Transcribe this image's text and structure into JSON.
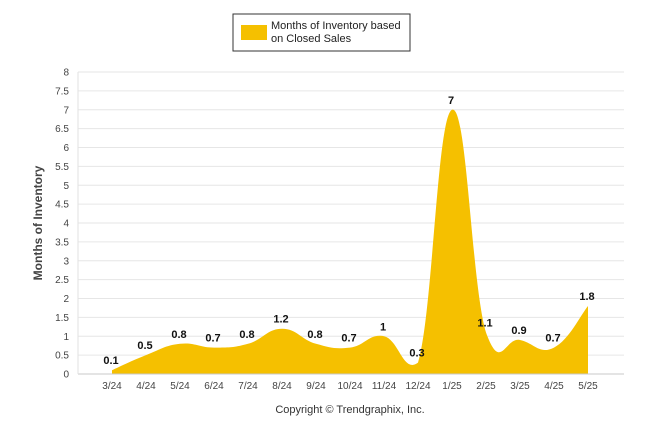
{
  "chart_data": {
    "type": "area",
    "categories": [
      "3/24",
      "4/24",
      "5/24",
      "6/24",
      "7/24",
      "8/24",
      "9/24",
      "10/24",
      "11/24",
      "12/24",
      "1/25",
      "2/25",
      "3/25",
      "4/25",
      "5/25"
    ],
    "series": [
      {
        "name": "Months of Inventory based on Closed Sales",
        "legend_lines": [
          "Months of Inventory based",
          "on Closed Sales"
        ],
        "values": [
          0.1,
          0.5,
          0.8,
          0.7,
          0.8,
          1.2,
          0.8,
          0.7,
          1,
          0.3,
          7,
          1.1,
          0.9,
          0.7,
          1.8
        ],
        "labels": [
          "0.1",
          "0.5",
          "0.8",
          "0.7",
          "0.8",
          "1.2",
          "0.8",
          "0.7",
          "1",
          "0.3",
          "7",
          "1.1",
          "0.9",
          "0.7",
          "1.8"
        ],
        "color": "#f5c000"
      }
    ],
    "title": "",
    "xlabel": "",
    "ylabel": "Months of Inventory",
    "ylim": [
      0,
      8
    ],
    "yticks": [
      "0",
      "0.5",
      "1",
      "1.5",
      "2",
      "2.5",
      "3",
      "3.5",
      "4",
      "4.5",
      "5",
      "5.5",
      "6",
      "6.5",
      "7",
      "7.5",
      "8"
    ],
    "grid": true,
    "legend_position": "top-center",
    "footer": "Copyright © Trendgraphix, Inc."
  }
}
